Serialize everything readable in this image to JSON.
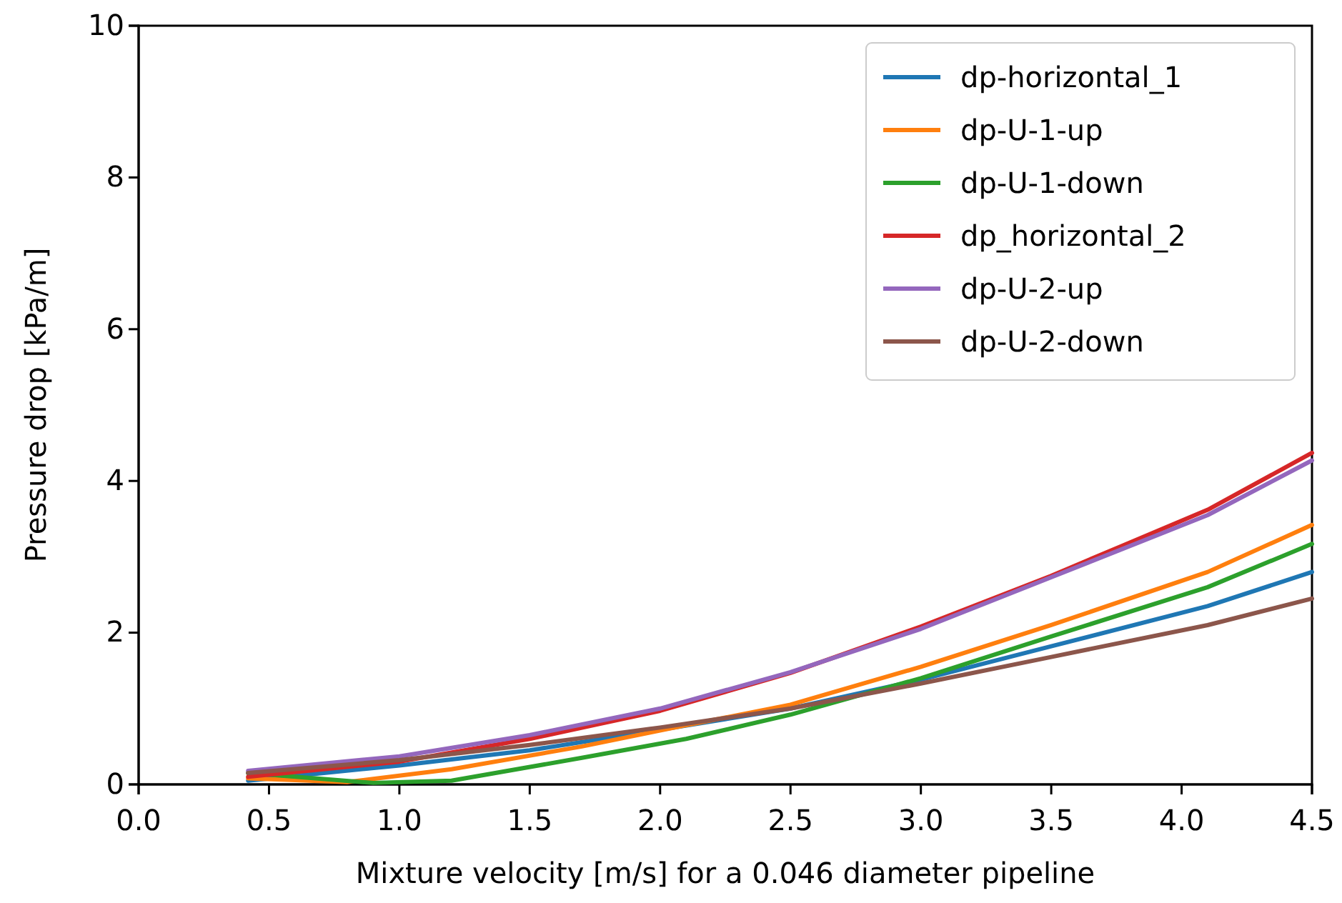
{
  "chart_data": {
    "type": "line",
    "xlabel": "Mixture velocity [m/s] for a 0.046 diameter pipeline",
    "ylabel": "Pressure drop [kPa/m]",
    "xlim": [
      0,
      4.5
    ],
    "xticks": [
      {
        "value": 0,
        "label": "0.0"
      },
      {
        "value": 0.5,
        "label": "0.5"
      },
      {
        "value": 1,
        "label": "1.0"
      },
      {
        "value": 1.5,
        "label": "1.5"
      },
      {
        "value": 2,
        "label": "2.0"
      },
      {
        "value": 2.5,
        "label": "2.5"
      },
      {
        "value": 3,
        "label": "3.0"
      },
      {
        "value": 3.5,
        "label": "3.5"
      },
      {
        "value": 4,
        "label": "4.0"
      },
      {
        "value": 4.5,
        "label": "4.5"
      }
    ],
    "ylim": [
      0,
      10
    ],
    "yticks": [
      0,
      2,
      4,
      6,
      8,
      10
    ],
    "grid": false,
    "legend": "top right",
    "series": [
      {
        "name": "dp-horizontal_1",
        "color": "#1f77b4",
        "x": [
          0.42,
          1.0,
          1.5,
          2.0,
          2.5,
          3.0,
          3.5,
          4.1,
          4.5
        ],
        "values": [
          0.05,
          0.25,
          0.45,
          0.72,
          1.0,
          1.38,
          1.82,
          2.35,
          2.8
        ]
      },
      {
        "name": "dp-U-1-up",
        "color": "#ff7f0e",
        "x": [
          0.42,
          0.8,
          1.2,
          1.7,
          2.1,
          2.5,
          3.0,
          3.5,
          4.1,
          4.5
        ],
        "values": [
          0.08,
          0.03,
          0.2,
          0.5,
          0.78,
          1.05,
          1.55,
          2.1,
          2.8,
          3.42
        ]
      },
      {
        "name": "dp-U-1-down",
        "color": "#2ca02c",
        "x": [
          0.42,
          0.9,
          1.2,
          1.7,
          2.1,
          2.5,
          3.0,
          3.5,
          4.1,
          4.5
        ],
        "values": [
          0.15,
          0.02,
          0.05,
          0.35,
          0.6,
          0.92,
          1.4,
          1.95,
          2.6,
          3.17
        ]
      },
      {
        "name": "dp_horizontal_2",
        "color": "#d62728",
        "x": [
          0.42,
          1.0,
          1.5,
          2.0,
          2.5,
          3.0,
          3.5,
          4.1,
          4.5
        ],
        "values": [
          0.1,
          0.3,
          0.6,
          0.97,
          1.47,
          2.08,
          2.75,
          3.62,
          4.37
        ]
      },
      {
        "name": "dp-U-2-up",
        "color": "#9467bd",
        "x": [
          0.42,
          1.0,
          1.5,
          2.0,
          2.5,
          3.0,
          3.5,
          4.1,
          4.5
        ],
        "values": [
          0.18,
          0.37,
          0.65,
          1.0,
          1.48,
          2.05,
          2.73,
          3.55,
          4.27
        ]
      },
      {
        "name": "dp-U-2-down",
        "color": "#8c564b",
        "x": [
          0.42,
          1.0,
          1.5,
          2.0,
          2.5,
          3.0,
          3.5,
          4.1,
          4.5
        ],
        "values": [
          0.15,
          0.32,
          0.52,
          0.75,
          1.0,
          1.33,
          1.68,
          2.1,
          2.45
        ]
      }
    ]
  }
}
